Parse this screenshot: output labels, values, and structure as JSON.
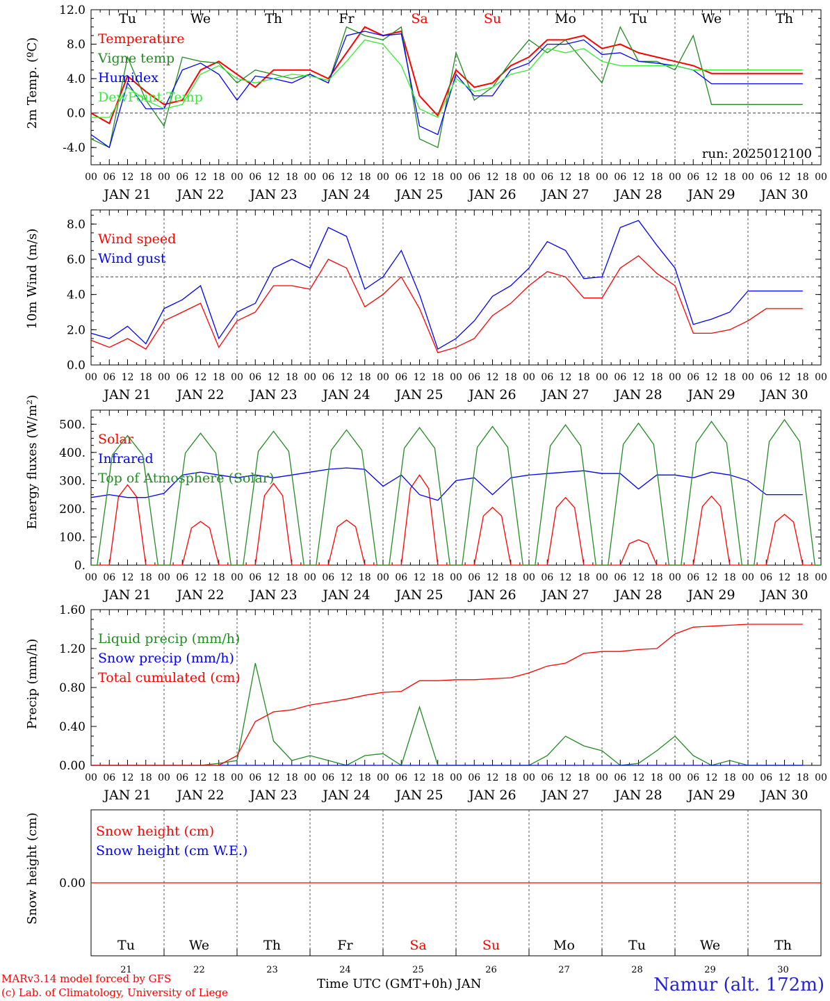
{
  "colors": {
    "red": "#ff0000",
    "green": "#228b22",
    "blue": "#0000ff",
    "light_green": "#33ee33",
    "black": "#000000"
  },
  "x_axis": {
    "hour_labels": [
      "00",
      "06",
      "12",
      "18"
    ],
    "end_hour_label": "00",
    "dates": [
      "JAN 21",
      "JAN 22",
      "JAN 23",
      "JAN 24",
      "JAN 25",
      "JAN 26",
      "JAN 27",
      "JAN 28",
      "JAN 29",
      "JAN 30"
    ],
    "weekdays": [
      "Tu",
      "We",
      "Th",
      "Fr",
      "Sa",
      "Su",
      "Mo",
      "Tu",
      "We",
      "Th"
    ],
    "weekend_indices": [
      4,
      5
    ],
    "day_numbers": [
      "21",
      "22",
      "23",
      "24",
      "25",
      "26",
      "27",
      "28",
      "29",
      "30"
    ],
    "title": "Time UTC (GMT+0h) JAN"
  },
  "footer": {
    "model": "MARv3.14 model forced by GFS",
    "lab": "(c) Lab. of Climatology, University of Liege",
    "station": "Namur (alt. 172m)"
  },
  "chart_data": [
    {
      "type": "line",
      "ylabel": "2m Temp. (ºC)",
      "ylim": [
        -6,
        12
      ],
      "yticks": [
        "-4.0",
        "0.0",
        "4.0",
        "8.0",
        "12.0"
      ],
      "ytick_values": [
        -4,
        0,
        4,
        8,
        12
      ],
      "ref_line": 0,
      "annotation": "run: 2025012100",
      "x_hours": [
        0,
        6,
        12,
        18,
        24,
        30,
        36,
        42,
        48,
        54,
        60,
        66,
        72,
        78,
        84,
        90,
        96,
        102,
        108,
        114,
        120,
        126,
        132,
        138,
        144,
        150,
        156,
        162,
        168,
        174,
        180,
        186,
        192,
        198,
        204,
        210,
        216,
        222,
        228,
        234
      ],
      "series": [
        {
          "name": "Temperature",
          "color": "red",
          "values": [
            0.0,
            -1.2,
            4.3,
            2.5,
            1.0,
            1.5,
            5.0,
            6.0,
            4.5,
            3.0,
            5.0,
            5.0,
            5.0,
            4.0,
            7.0,
            10.0,
            9.0,
            9.5,
            2.0,
            -0.3,
            5.0,
            3.0,
            3.5,
            5.5,
            6.5,
            8.5,
            8.5,
            9.0,
            7.5,
            8.0,
            7.0,
            6.5,
            6.0,
            5.5,
            4.6,
            4.6,
            4.6,
            4.6,
            4.6,
            4.6
          ]
        },
        {
          "name": "Vigne temp",
          "color": "green",
          "values": [
            -3.0,
            -4.0,
            6.5,
            1.5,
            -1.5,
            6.5,
            6.0,
            5.8,
            3.5,
            5.0,
            4.5,
            4.0,
            4.5,
            3.5,
            10.0,
            9.0,
            8.5,
            10.0,
            -3.0,
            -4.0,
            7.0,
            1.5,
            3.0,
            6.0,
            8.5,
            7.0,
            8.5,
            6.0,
            3.5,
            10.0,
            6.0,
            6.0,
            5.0,
            9.0,
            1.0,
            1.0,
            1.0,
            1.0,
            1.0,
            1.0
          ]
        },
        {
          "name": "Humidex",
          "color": "blue",
          "values": [
            -2.5,
            -4.0,
            3.5,
            0.5,
            0.5,
            5.0,
            5.8,
            4.5,
            1.5,
            4.3,
            4.0,
            3.5,
            4.5,
            3.5,
            9.0,
            9.5,
            9.0,
            9.2,
            -1.5,
            -2.5,
            4.5,
            2.0,
            2.0,
            5.0,
            5.8,
            8.0,
            8.0,
            8.5,
            6.8,
            7.0,
            6.0,
            5.8,
            5.5,
            5.0,
            3.4,
            3.4,
            3.4,
            3.4,
            3.4,
            3.4
          ]
        },
        {
          "name": "DewPoint Temp",
          "color": "light_green",
          "values": [
            -0.5,
            -0.5,
            3.0,
            1.5,
            0.5,
            1.0,
            4.5,
            5.5,
            4.0,
            3.5,
            4.0,
            4.5,
            4.3,
            3.8,
            6.0,
            8.5,
            8.0,
            5.5,
            0.5,
            -0.5,
            4.0,
            2.5,
            3.0,
            4.5,
            5.0,
            7.5,
            7.0,
            7.5,
            6.0,
            5.5,
            5.5,
            5.5,
            5.5,
            5.0,
            5.0,
            5.0,
            5.0,
            5.0,
            5.0,
            5.0
          ]
        }
      ]
    },
    {
      "type": "line",
      "ylabel": "10m Wind (m/s)",
      "ylim": [
        0,
        8.8
      ],
      "yticks": [
        "0.0",
        "2.0",
        "4.0",
        "6.0",
        "8.0"
      ],
      "ytick_values": [
        0,
        2,
        4,
        6,
        8
      ],
      "ref_line": 5,
      "x_hours": [
        0,
        6,
        12,
        18,
        24,
        30,
        36,
        42,
        48,
        54,
        60,
        66,
        72,
        78,
        84,
        90,
        96,
        102,
        108,
        114,
        120,
        126,
        132,
        138,
        144,
        150,
        156,
        162,
        168,
        174,
        180,
        186,
        192,
        198,
        204,
        210,
        216,
        222,
        228,
        234
      ],
      "series": [
        {
          "name": "Wind speed",
          "color": "red",
          "values": [
            1.4,
            1.0,
            1.5,
            0.9,
            2.5,
            3.0,
            3.5,
            1.0,
            2.5,
            3.0,
            4.5,
            4.5,
            4.3,
            6.0,
            5.5,
            3.3,
            4.0,
            5.0,
            3.2,
            0.7,
            1.0,
            1.5,
            2.8,
            3.5,
            4.5,
            5.3,
            5.0,
            3.8,
            3.8,
            5.5,
            6.2,
            5.2,
            4.5,
            1.8,
            1.8,
            2.0,
            2.5,
            3.2,
            3.2,
            3.2
          ]
        },
        {
          "name": "Wind gust",
          "color": "blue",
          "values": [
            1.8,
            1.5,
            2.2,
            1.2,
            3.2,
            3.7,
            4.5,
            1.5,
            3.0,
            3.5,
            5.5,
            6.0,
            5.5,
            7.8,
            7.3,
            4.3,
            5.0,
            6.5,
            4.0,
            0.9,
            1.5,
            2.5,
            3.9,
            4.5,
            5.5,
            7.0,
            6.5,
            4.9,
            5.0,
            7.8,
            8.2,
            6.8,
            5.5,
            2.3,
            2.6,
            3.0,
            4.2,
            4.2,
            4.2,
            4.2
          ]
        }
      ]
    },
    {
      "type": "line",
      "ylabel": "Energy fluxes (W/m²)",
      "ylim": [
        0,
        550
      ],
      "yticks": [
        "0.",
        "100.",
        "200.",
        "300.",
        "400.",
        "500."
      ],
      "ytick_values": [
        0,
        100,
        200,
        300,
        400,
        500
      ],
      "x_hours": [
        0,
        6,
        12,
        18,
        24,
        30,
        36,
        42,
        48,
        54,
        60,
        66,
        72,
        78,
        84,
        90,
        96,
        102,
        108,
        114,
        120,
        126,
        132,
        138,
        144,
        150,
        156,
        162,
        168,
        174,
        180,
        186,
        192,
        198,
        204,
        210,
        216,
        222,
        228,
        234
      ],
      "series": [
        {
          "name": "Solar",
          "color": "red",
          "peaks": [
            {
              "day": 0,
              "val": 285
            },
            {
              "day": 1,
              "val": 155
            },
            {
              "day": 2,
              "val": 290
            },
            {
              "day": 3,
              "val": 160
            },
            {
              "day": 4,
              "val": 320
            },
            {
              "day": 5,
              "val": 205
            },
            {
              "day": 6,
              "val": 240
            },
            {
              "day": 7,
              "val": 90
            },
            {
              "day": 8,
              "val": 245
            },
            {
              "day": 9,
              "val": 180
            }
          ]
        },
        {
          "name": "Infrared",
          "color": "blue",
          "values": [
            240,
            250,
            240,
            240,
            255,
            320,
            330,
            320,
            310,
            320,
            310,
            320,
            330,
            340,
            345,
            340,
            280,
            320,
            250,
            230,
            300,
            310,
            250,
            310,
            320,
            325,
            330,
            335,
            325,
            325,
            270,
            320,
            320,
            310,
            330,
            320,
            300,
            250,
            250,
            250
          ]
        },
        {
          "name": "Top of Atmosphere (Solar)",
          "color": "green",
          "peaks": [
            {
              "day": 0,
              "val": 460
            },
            {
              "day": 1,
              "val": 468
            },
            {
              "day": 2,
              "val": 475
            },
            {
              "day": 3,
              "val": 480
            },
            {
              "day": 4,
              "val": 488
            },
            {
              "day": 5,
              "val": 492
            },
            {
              "day": 6,
              "val": 498
            },
            {
              "day": 7,
              "val": 504
            },
            {
              "day": 8,
              "val": 510
            },
            {
              "day": 9,
              "val": 516
            }
          ]
        }
      ]
    },
    {
      "type": "line",
      "ylabel": "Precip (mm/h)",
      "ylim": [
        0,
        1.6
      ],
      "yticks": [
        "0.00",
        "0.40",
        "0.80",
        "1.20",
        "1.60"
      ],
      "ytick_values": [
        0,
        0.4,
        0.8,
        1.2,
        1.6
      ],
      "x_hours": [
        0,
        6,
        12,
        18,
        24,
        30,
        36,
        42,
        48,
        54,
        60,
        66,
        72,
        78,
        84,
        90,
        96,
        102,
        108,
        114,
        120,
        126,
        132,
        138,
        144,
        150,
        156,
        162,
        168,
        174,
        180,
        186,
        192,
        198,
        204,
        210,
        216,
        222,
        228,
        234
      ],
      "series": [
        {
          "name": "Liquid precip (mm/h)",
          "color": "green",
          "values": [
            0,
            0,
            0,
            0,
            0,
            0,
            0,
            0.02,
            0.05,
            1.05,
            0.25,
            0.05,
            0.1,
            0.05,
            0,
            0.1,
            0.12,
            0,
            0.6,
            0,
            0,
            0,
            0,
            0,
            0,
            0.1,
            0.3,
            0.2,
            0.15,
            0,
            0.02,
            0.15,
            0.3,
            0.1,
            0,
            0.05,
            0,
            0,
            0,
            0
          ]
        },
        {
          "name": "Snow precip (mm/h)",
          "color": "blue",
          "values": [
            0,
            0,
            0,
            0,
            0,
            0,
            0,
            0,
            0,
            0,
            0,
            0,
            0,
            0,
            0,
            0,
            0,
            0,
            0,
            0,
            0,
            0,
            0,
            0,
            0,
            0,
            0,
            0,
            0,
            0,
            0,
            0,
            0,
            0,
            0,
            0,
            0,
            0,
            0,
            0
          ]
        },
        {
          "name": "Total cumulated (cm)",
          "color": "red",
          "values": [
            0,
            0,
            0,
            0,
            0,
            0,
            0,
            0,
            0.1,
            0.45,
            0.55,
            0.57,
            0.62,
            0.65,
            0.68,
            0.72,
            0.75,
            0.76,
            0.87,
            0.87,
            0.88,
            0.88,
            0.89,
            0.9,
            0.95,
            1.02,
            1.05,
            1.15,
            1.17,
            1.17,
            1.19,
            1.2,
            1.35,
            1.42,
            1.43,
            1.44,
            1.45,
            1.45,
            1.45,
            1.45
          ]
        }
      ]
    },
    {
      "type": "line",
      "ylabel": "Snow height (cm)",
      "ylim": [
        -1,
        1
      ],
      "yticks": [
        "0.00"
      ],
      "ytick_values": [
        0
      ],
      "x_hours": [
        0,
        234
      ],
      "series": [
        {
          "name": "Snow height (cm)",
          "color": "red",
          "values": [
            0,
            0
          ]
        },
        {
          "name": "Snow height (cm W.E.)",
          "color": "blue",
          "values": []
        }
      ]
    }
  ]
}
